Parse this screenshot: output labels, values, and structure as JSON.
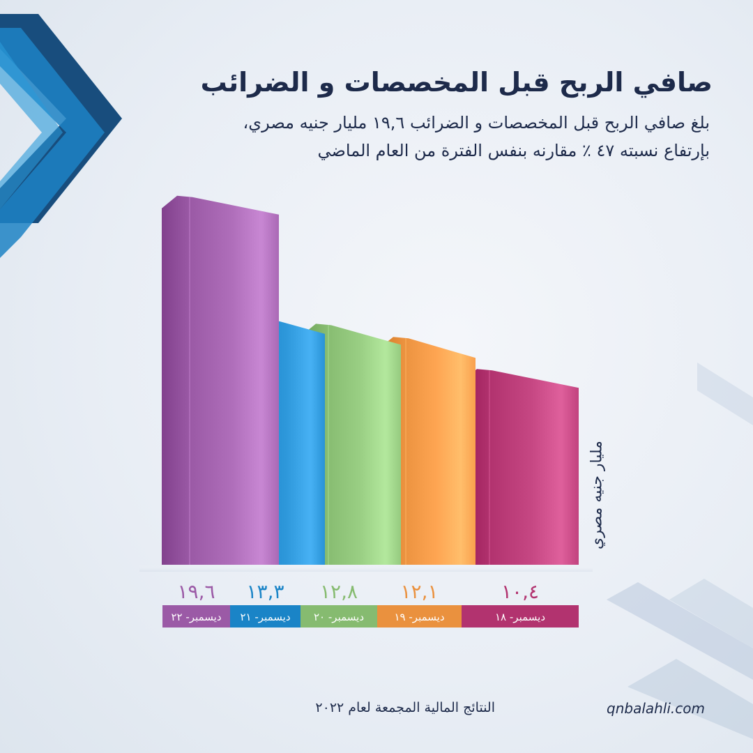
{
  "header": {
    "title": "صافي الربح قبل المخصصات و الضرائب",
    "subtitle_line1": "بلغ صافي الربح قبل المخصصات و الضرائب ١٩,٦ مليار جنيه مصري،",
    "subtitle_line2": "بإرتفاع نسبته ٤٧ ٪ مقارنه بنفس الفترة من العام الماضي"
  },
  "chart_data": {
    "type": "bar",
    "title": "صافي الربح قبل المخصصات و الضرائب",
    "ylabel": "مليار جنيه مصري",
    "ylim": [
      0,
      20
    ],
    "categories": [
      "ديسمبر- ٢٢",
      "ديسمبر- ٢١",
      "ديسمبر- ٢٠",
      "ديسمبر- ١٩",
      "ديسمبر- ١٨"
    ],
    "values": [
      19.6,
      13.3,
      12.8,
      12.1,
      10.4
    ],
    "value_labels": [
      "١٩,٦",
      "١٣,٣",
      "١٢,٨",
      "١٢,١",
      "١٠,٤"
    ],
    "colors": [
      "#9b5aa6",
      "#1a84c7",
      "#86bb70",
      "#ea913e",
      "#b2336f"
    ]
  },
  "footer": {
    "note": "النتائج المالية المجمعة لعام ٢٠٢٢",
    "website": "qnbalahli.com"
  },
  "decor": {
    "accent_dark": "#0f4577",
    "accent_light": "#1b7fc0"
  }
}
